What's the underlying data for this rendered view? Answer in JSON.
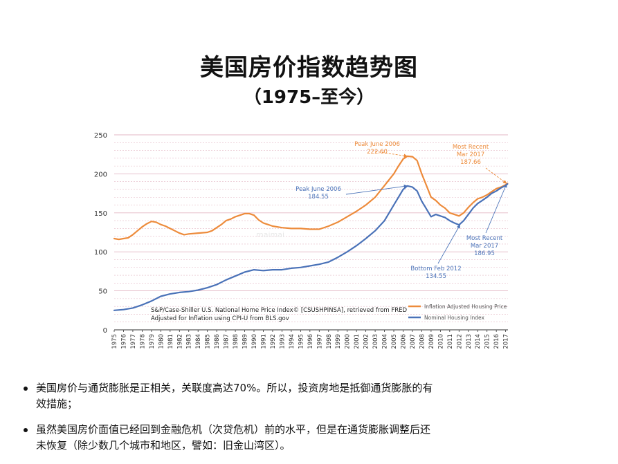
{
  "slide": {
    "title": "美国房价指数趋势图",
    "subtitle": "（1975–至今）"
  },
  "watermark": "maimai",
  "bullets": [
    "美国房价与通货膨胀是正相关，关联度高达70%。所以，投资房地是抵御通货膨胀的有效措施；",
    "虽然美国房价面值已经回到金融危机（次贷危机）前的水平，但是在通货膨胀调整后还未恢复（除少数几个城市和地区，譬如：旧金山湾区）。"
  ],
  "colors": {
    "inflation": "#ED8B3B",
    "nominal": "#4A72B8",
    "grid": "#E3B7C4",
    "axis": "#333333",
    "source_text": "#222222"
  },
  "chart_data": {
    "type": "line",
    "x_label": "",
    "y_label": "",
    "ylim": [
      0,
      250
    ],
    "y_ticks": [
      0,
      50,
      100,
      150,
      200,
      250
    ],
    "xlim": [
      1975,
      2017.25
    ],
    "x_ticks": [
      "1975",
      "1976",
      "1977",
      "1978",
      "1979",
      "1980",
      "1981",
      "1982",
      "1983",
      "1984",
      "1985",
      "1986",
      "1987",
      "1988",
      "1989",
      "1990",
      "1991",
      "1992",
      "1993",
      "1994",
      "1995",
      "1996",
      "1997",
      "1998",
      "1999",
      "2000",
      "2001",
      "2002",
      "2003",
      "2004",
      "2005",
      "2006",
      "2007",
      "2008",
      "2009",
      "2010",
      "2011",
      "2012",
      "2013",
      "2014",
      "2015",
      "2016",
      "2017"
    ],
    "grid": true,
    "legend_position": "bottom-right",
    "source_note": [
      "S&P/Case-Shiller U.S. National Home Price Index© [CSUSHPINSA], retrieved from FRED",
      "Adjusted for Inflation using CPI-U from BLS.gov"
    ],
    "series": [
      {
        "name": "Inflation Adjusted Housing Price",
        "color": "#ED8B3B",
        "x": [
          1975,
          1975.5,
          1976,
          1976.5,
          1977,
          1977.5,
          1978,
          1978.5,
          1979,
          1979.5,
          1980,
          1980.5,
          1981,
          1981.5,
          1982,
          1982.5,
          1983,
          1984,
          1985,
          1985.5,
          1986,
          1986.5,
          1987,
          1987.5,
          1988,
          1988.5,
          1989,
          1989.5,
          1990,
          1990.5,
          1991,
          1991.5,
          1992,
          1993,
          1994,
          1995,
          1996,
          1997,
          1998,
          1999,
          2000,
          2001,
          2002,
          2003,
          2004,
          2005,
          2005.5,
          2006,
          2006.45,
          2007,
          2007.5,
          2008,
          2008.5,
          2009,
          2009.5,
          2010,
          2010.5,
          2011,
          2011.5,
          2012,
          2012.5,
          2013,
          2013.5,
          2014,
          2014.5,
          2015,
          2015.5,
          2016,
          2016.5,
          2017,
          2017.2
        ],
        "y": [
          117,
          116,
          117,
          118,
          122,
          127,
          132,
          136,
          139,
          138,
          135,
          133,
          130,
          127,
          124,
          122,
          123,
          124,
          125,
          127,
          131,
          135,
          140,
          142,
          145,
          147,
          149,
          149,
          147,
          141,
          137,
          135,
          133,
          131,
          130,
          130,
          129,
          129,
          133,
          138,
          145,
          152,
          160,
          170,
          185,
          200,
          210,
          219,
          222.6,
          222,
          217,
          200,
          185,
          170,
          166,
          160,
          156,
          150,
          148,
          146,
          150,
          157,
          163,
          168,
          170,
          173,
          177,
          181,
          183,
          186,
          187.66
        ]
      },
      {
        "name": "Nominal Housing Index",
        "color": "#4A72B8",
        "x": [
          1975,
          1976,
          1977,
          1978,
          1979,
          1980,
          1981,
          1982,
          1983,
          1984,
          1985,
          1986,
          1987,
          1988,
          1989,
          1990,
          1991,
          1992,
          1993,
          1994,
          1995,
          1996,
          1997,
          1998,
          1999,
          2000,
          2001,
          2002,
          2003,
          2004,
          2005,
          2005.5,
          2006,
          2006.45,
          2007,
          2007.5,
          2008,
          2008.5,
          2009,
          2009.5,
          2010,
          2010.5,
          2011,
          2011.5,
          2012,
          2012.5,
          2013,
          2013.5,
          2014,
          2014.5,
          2015,
          2015.5,
          2016,
          2016.5,
          2017,
          2017.2
        ],
        "y": [
          25,
          26,
          28,
          32,
          37,
          43,
          46,
          48,
          49,
          51,
          54,
          58,
          64,
          69,
          74,
          77,
          76,
          77,
          77,
          79,
          80,
          82,
          84,
          87,
          93,
          100,
          108,
          117,
          127,
          140,
          160,
          170,
          180,
          184.55,
          183,
          178,
          165,
          155,
          145,
          148,
          146,
          144,
          140,
          137,
          134.55,
          140,
          148,
          156,
          162,
          166,
          170,
          175,
          178,
          182,
          185,
          186.95
        ]
      }
    ],
    "annotations": [
      {
        "name": "ann-infl-peak",
        "lines": [
          "Peak June 2006",
          "222.60"
        ],
        "color": "#ED8B3B",
        "target": [
          2006.45,
          222.6
        ]
      },
      {
        "name": "ann-infl-recent",
        "lines": [
          "Most Recent",
          "Mar 2017",
          "187.66"
        ],
        "color": "#ED8B3B",
        "target": [
          2017.1,
          187.66
        ]
      },
      {
        "name": "ann-nom-peak",
        "lines": [
          "Peak June 2006",
          "184.55"
        ],
        "color": "#4A72B8",
        "target": [
          2006.45,
          184.55
        ]
      },
      {
        "name": "ann-nom-bottom",
        "lines": [
          "Bottom Feb 2012",
          "134.55"
        ],
        "color": "#4A72B8",
        "target": [
          2012.1,
          134.55
        ]
      },
      {
        "name": "ann-nom-recent",
        "lines": [
          "Most Recent",
          "Mar 2017",
          "186.95"
        ],
        "color": "#4A72B8",
        "target": [
          2017.1,
          186.95
        ]
      }
    ]
  }
}
